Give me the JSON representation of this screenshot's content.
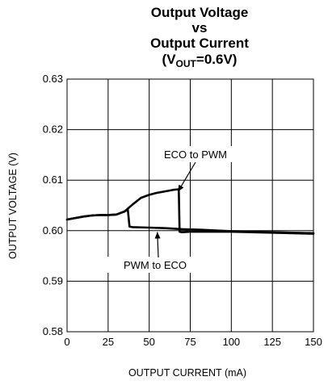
{
  "chart_data": {
    "type": "line",
    "title_lines": [
      "Output Voltage",
      "vs",
      "Output Current"
    ],
    "title_condition": {
      "open": "(V",
      "subscript": "OUT",
      "close": "=0.6V)"
    },
    "xlabel": "OUTPUT CURRENT (mA)",
    "ylabel": "OUTPUT VOLTAGE (V)",
    "xlim": [
      0,
      150
    ],
    "ylim": [
      0.58,
      0.63
    ],
    "xticks": [
      0,
      25,
      50,
      75,
      100,
      125,
      150
    ],
    "xtick_labels": [
      "0",
      "25",
      "50",
      "75",
      "100",
      "125",
      "150"
    ],
    "yticks": [
      0.58,
      0.59,
      0.6,
      0.61,
      0.62,
      0.63
    ],
    "ytick_labels": [
      "0.58",
      "0.59",
      "0.60",
      "0.61",
      "0.62",
      "0.63"
    ],
    "grid": true,
    "series": [
      {
        "name": "ECO to PWM",
        "x": [
          0,
          5,
          10,
          15,
          20,
          25,
          30,
          35,
          40,
          45,
          50,
          55,
          60,
          65,
          68,
          68.5,
          70,
          75,
          100,
          125,
          150
        ],
        "y": [
          0.6022,
          0.6025,
          0.6028,
          0.603,
          0.6031,
          0.6031,
          0.6032,
          0.6038,
          0.6052,
          0.6065,
          0.6071,
          0.6075,
          0.6078,
          0.6081,
          0.6082,
          0.5998,
          0.5997,
          0.5998,
          0.5998,
          0.5996,
          0.5994
        ]
      },
      {
        "name": "PWM to ECO",
        "x": [
          0,
          5,
          10,
          15,
          20,
          25,
          30,
          35,
          37,
          38,
          40,
          50,
          60,
          70,
          80,
          100,
          125,
          150
        ],
        "y": [
          0.6022,
          0.6025,
          0.6028,
          0.603,
          0.6031,
          0.6031,
          0.6032,
          0.6038,
          0.6042,
          0.6008,
          0.6007,
          0.6006,
          0.6005,
          0.6003,
          0.6002,
          0.5999,
          0.5997,
          0.5995
        ]
      }
    ],
    "annotations": [
      {
        "text": "ECO to PWM",
        "points_to": [
          68,
          0.6082
        ]
      },
      {
        "text": "PWM to ECO",
        "points_to": [
          53,
          0.6002
        ]
      }
    ]
  }
}
